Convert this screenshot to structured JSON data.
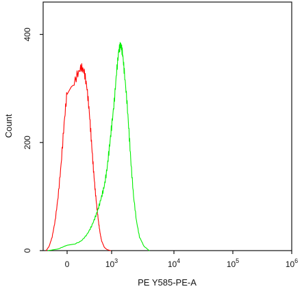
{
  "chart_data": {
    "type": "line",
    "title": "",
    "xlabel": "PE Y585-PE-A",
    "ylabel": "Count",
    "x_scale": "biexponential",
    "xlim": [
      -400,
      1000000
    ],
    "ylim": [
      0,
      460
    ],
    "y_ticks": [
      0,
      200,
      400
    ],
    "y_tick_labels": [
      "0",
      "200",
      "400"
    ],
    "x_ticks": [
      {
        "value": 0,
        "base": "0",
        "exp": ""
      },
      {
        "value": 1000,
        "base": "10",
        "exp": "3"
      },
      {
        "value": 10000,
        "base": "10",
        "exp": "4"
      },
      {
        "value": 100000,
        "base": "10",
        "exp": "5"
      },
      {
        "value": 1000000,
        "base": "10",
        "exp": "6"
      }
    ],
    "grid": false,
    "legend": "none",
    "series": [
      {
        "color": "#ff0000",
        "points": [
          [
            -350,
            0
          ],
          [
            -300,
            8
          ],
          [
            -250,
            25
          ],
          [
            -200,
            55
          ],
          [
            -150,
            100
          ],
          [
            -100,
            160
          ],
          [
            -50,
            235
          ],
          [
            0,
            295
          ],
          [
            50,
            325
          ],
          [
            100,
            340
          ],
          [
            150,
            330
          ],
          [
            200,
            300
          ],
          [
            250,
            255
          ],
          [
            300,
            200
          ],
          [
            350,
            150
          ],
          [
            400,
            110
          ],
          [
            450,
            78
          ],
          [
            500,
            52
          ],
          [
            550,
            32
          ],
          [
            600,
            18
          ],
          [
            700,
            6
          ],
          [
            800,
            2
          ],
          [
            950,
            0
          ]
        ]
      },
      {
        "color": "#00ee00",
        "points": [
          [
            -320,
            0
          ],
          [
            -150,
            3
          ],
          [
            0,
            10
          ],
          [
            100,
            18
          ],
          [
            200,
            30
          ],
          [
            300,
            45
          ],
          [
            400,
            62
          ],
          [
            500,
            80
          ],
          [
            600,
            100
          ],
          [
            700,
            120
          ],
          [
            800,
            150
          ],
          [
            900,
            190
          ],
          [
            1000,
            230
          ],
          [
            1100,
            275
          ],
          [
            1200,
            330
          ],
          [
            1300,
            370
          ],
          [
            1400,
            382
          ],
          [
            1500,
            365
          ],
          [
            1600,
            330
          ],
          [
            1750,
            280
          ],
          [
            1900,
            220
          ],
          [
            2050,
            160
          ],
          [
            2250,
            100
          ],
          [
            2500,
            55
          ],
          [
            2800,
            25
          ],
          [
            3300,
            8
          ],
          [
            4000,
            0
          ]
        ]
      }
    ]
  }
}
